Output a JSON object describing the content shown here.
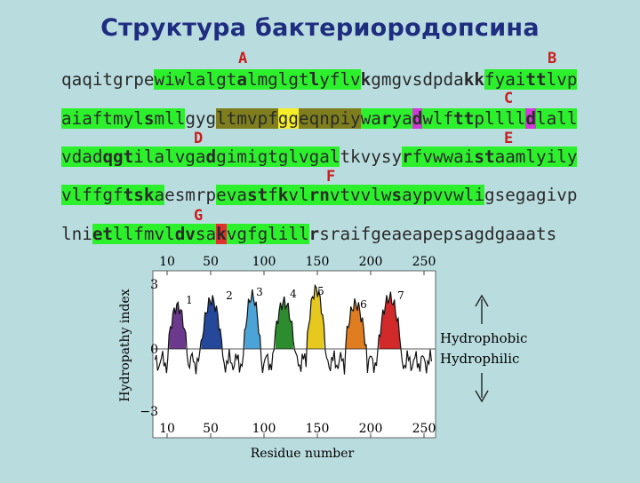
{
  "title": "Структура бактериородопсина",
  "helix_labels": [
    "A",
    "B",
    "C",
    "D",
    "E",
    "F",
    "G"
  ],
  "sequence_lines": [
    [
      {
        "t": "qaqitgrpe",
        "c": ""
      },
      {
        "t": "wiwlalgt",
        "c": "g"
      },
      {
        "t": "a",
        "c": "gb"
      },
      {
        "t": "lmglgt",
        "c": "g"
      },
      {
        "t": "l",
        "c": "gb"
      },
      {
        "t": "yflv",
        "c": "g"
      },
      {
        "t": "k",
        "c": "b"
      },
      {
        "t": "gmgvsdpda",
        "c": ""
      },
      {
        "t": "kk",
        "c": "b"
      },
      {
        "t": "fyai",
        "c": "g"
      },
      {
        "t": "tt",
        "c": "gb"
      },
      {
        "t": "lvp",
        "c": "g"
      }
    ],
    [
      {
        "t": "aiaftmyl",
        "c": "g"
      },
      {
        "t": "s",
        "c": "gb"
      },
      {
        "t": "mll",
        "c": "g"
      },
      {
        "t": "gyg",
        "c": ""
      },
      {
        "t": "ltmvpf",
        "c": "o"
      },
      {
        "t": "gg",
        "c": "y"
      },
      {
        "t": "eqnpiy",
        "c": "o"
      },
      {
        "t": "wa",
        "c": "g"
      },
      {
        "t": "r",
        "c": "gb"
      },
      {
        "t": "ya",
        "c": "g"
      },
      {
        "t": "d",
        "c": "mb"
      },
      {
        "t": "wlf",
        "c": "g"
      },
      {
        "t": "tt",
        "c": "gb"
      },
      {
        "t": "pllll",
        "c": "g"
      },
      {
        "t": "d",
        "c": "mb"
      },
      {
        "t": "lall",
        "c": "g"
      }
    ],
    [
      {
        "t": "vdad",
        "c": "g"
      },
      {
        "t": "qgt",
        "c": "gb"
      },
      {
        "t": "ilalvga",
        "c": "g"
      },
      {
        "t": "d",
        "c": "gb"
      },
      {
        "t": "gimigtglvgal",
        "c": "g"
      },
      {
        "t": "tkvysy",
        "c": ""
      },
      {
        "t": "r",
        "c": "gb"
      },
      {
        "t": "fvwwai",
        "c": "g"
      },
      {
        "t": "st",
        "c": "gb"
      },
      {
        "t": "aamlyily",
        "c": "g"
      }
    ],
    [
      {
        "t": "vlffgf",
        "c": "g"
      },
      {
        "t": "tsk",
        "c": "gb"
      },
      {
        "t": "a",
        "c": "g"
      },
      {
        "t": "esmrp",
        "c": ""
      },
      {
        "t": "eva",
        "c": "g"
      },
      {
        "t": "st",
        "c": "gb"
      },
      {
        "t": "f",
        "c": "g"
      },
      {
        "t": "k",
        "c": "gb"
      },
      {
        "t": "vl",
        "c": "g"
      },
      {
        "t": "rn",
        "c": "gb"
      },
      {
        "t": "vtvvlw",
        "c": "g"
      },
      {
        "t": "s",
        "c": "gb"
      },
      {
        "t": "aypvvwli",
        "c": "g"
      },
      {
        "t": "gsegagivp",
        "c": ""
      }
    ],
    [
      {
        "t": "lni",
        "c": ""
      },
      {
        "t": "et",
        "c": "gb"
      },
      {
        "t": "llfmvl",
        "c": "g"
      },
      {
        "t": "dv",
        "c": "gb"
      },
      {
        "t": "sa",
        "c": "g"
      },
      {
        "t": "k",
        "c": "rb"
      },
      {
        "t": "vgfglill",
        "c": "g"
      },
      {
        "t": "r",
        "c": "b"
      },
      {
        "t": "sraifgeaeapepsagdgaaats",
        "c": ""
      }
    ]
  ],
  "plot": {
    "ylabel": "Hydropathy index",
    "xlabel": "Residue number",
    "xticks": [
      "10",
      "50",
      "100",
      "150",
      "200",
      "250"
    ],
    "yticks": [
      "3",
      "0",
      "−3"
    ],
    "segment_labels": [
      "1",
      "2",
      "3",
      "4",
      "5",
      "6",
      "7"
    ],
    "hydrophobic_label": "Hydrophobic",
    "hydrophilic_label": "Hydrophilic",
    "segment_colors": [
      "#6b3a8c",
      "#26489a",
      "#4ba3d8",
      "#2d8c2d",
      "#e6c81e",
      "#e07d20",
      "#d22a2a"
    ]
  }
}
